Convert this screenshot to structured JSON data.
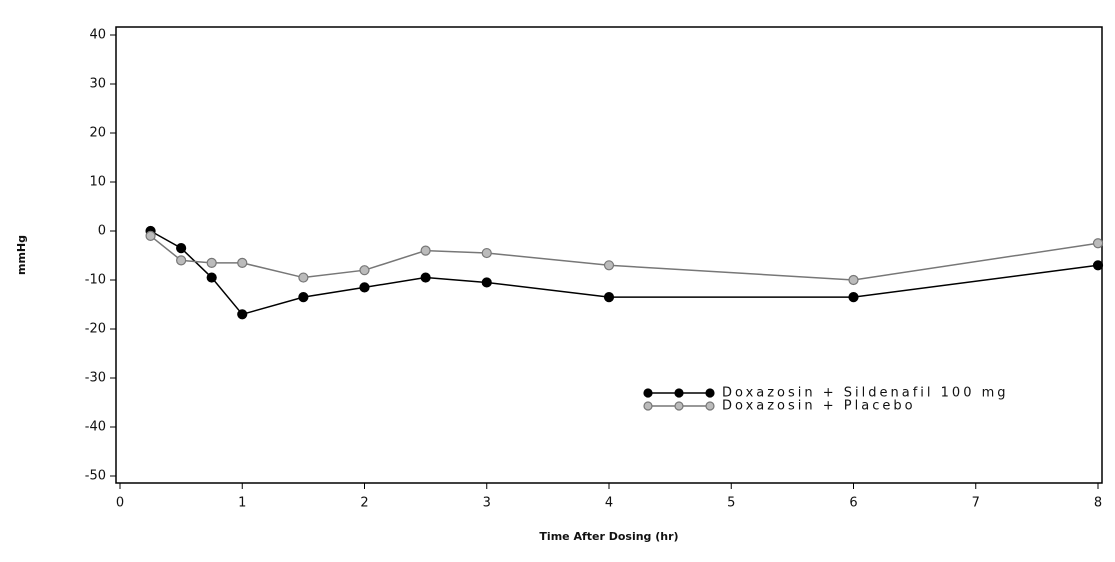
{
  "chart_data": {
    "type": "line",
    "xlabel": "Time After Dosing (hr)",
    "ylabel": "mmHg",
    "xlim": [
      0,
      8
    ],
    "xticks": [
      0,
      1,
      2,
      3,
      4,
      5,
      6,
      7,
      8
    ],
    "ylim": [
      -50,
      40
    ],
    "yticks": [
      -50,
      -40,
      -30,
      -20,
      -10,
      0,
      10,
      20,
      30,
      40
    ],
    "legend": "lower right",
    "series": [
      {
        "name": "Doxazosin + Sildenafil 100 mg",
        "color": "#000000",
        "x": [
          0.25,
          0.5,
          0.75,
          1,
          1.5,
          2,
          2.5,
          3,
          4,
          6,
          8
        ],
        "values": [
          0,
          -3.5,
          -9.5,
          -17,
          -13.5,
          -11.5,
          -9.5,
          -10.5,
          -13.5,
          -13.5,
          -7
        ]
      },
      {
        "name": "Doxazosin + Placebo",
        "color": "#777777",
        "x": [
          0.25,
          0.5,
          0.75,
          1,
          1.5,
          2,
          2.5,
          3,
          4,
          6,
          8
        ],
        "values": [
          -1,
          -6,
          -6.5,
          -6.5,
          -9.5,
          -8,
          -4,
          -4.5,
          -7,
          -10,
          -2.5
        ]
      }
    ]
  }
}
